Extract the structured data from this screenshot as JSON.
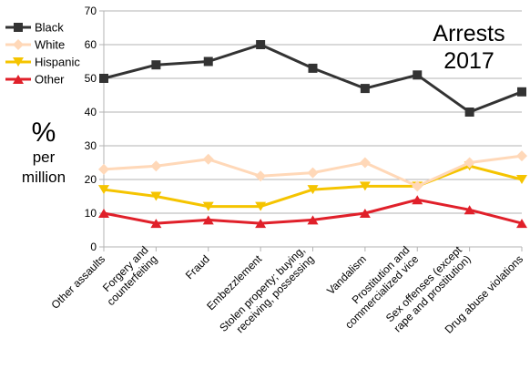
{
  "chart_data": {
    "type": "line",
    "title_lines": [
      "Arrests",
      "2017"
    ],
    "ylabel_lines": [
      "%",
      "per",
      "million"
    ],
    "ylim": [
      0,
      70
    ],
    "yticks": [
      0,
      10,
      20,
      30,
      40,
      50,
      60,
      70
    ],
    "grid": "horizontal",
    "legend_position": "top-left",
    "categories": [
      "Other assaults",
      "Forgery and counterfeiting",
      "Fraud",
      "Embezzlement",
      "Stolen property; buying, receiving, possessing",
      "Vandalism",
      "Prostitution and commercialized vice",
      "Sex offenses (except rape and prostitution)",
      "Drug abuse violations"
    ],
    "category_label_lines": [
      [
        "Other assaults"
      ],
      [
        "Forgery and",
        "counterfeiting"
      ],
      [
        "Fraud"
      ],
      [
        "Embezzlement"
      ],
      [
        "Stolen property; buying,",
        "receiving, possessing"
      ],
      [
        "Vandalism"
      ],
      [
        "Prostitution and",
        "commercialized vice"
      ],
      [
        "Sex offenses (except",
        "rape and prostitution)"
      ],
      [
        "Drug abuse violations"
      ]
    ],
    "series": [
      {
        "name": "Black",
        "color": "#333333",
        "marker": "square",
        "values": [
          50,
          54,
          55,
          60,
          53,
          47,
          51,
          40,
          46
        ]
      },
      {
        "name": "White",
        "color": "#ffd8b8",
        "marker": "diamond",
        "values": [
          23,
          24,
          26,
          21,
          22,
          25,
          18,
          25,
          27
        ]
      },
      {
        "name": "Hispanic",
        "color": "#f5c400",
        "marker": "triangle-down",
        "values": [
          17,
          15,
          12,
          12,
          17,
          18,
          18,
          24,
          20
        ]
      },
      {
        "name": "Other",
        "color": "#e0202a",
        "marker": "triangle-up",
        "values": [
          10,
          7,
          8,
          7,
          8,
          10,
          14,
          11,
          7
        ]
      }
    ]
  }
}
